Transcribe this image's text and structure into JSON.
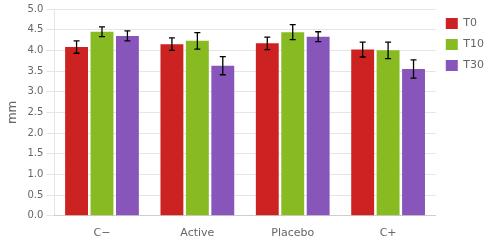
{
  "chart_data": {
    "type": "bar",
    "categories": [
      "C−",
      "Active",
      "Placebo",
      "C+"
    ],
    "series": [
      {
        "name": "T0",
        "color": "#CC2222",
        "values": [
          4.08,
          4.15,
          4.17,
          4.02
        ],
        "errors": [
          0.15,
          0.15,
          0.15,
          0.18
        ]
      },
      {
        "name": "T10",
        "color": "#88BB22",
        "values": [
          4.45,
          4.23,
          4.44,
          4.0
        ],
        "errors": [
          0.12,
          0.2,
          0.18,
          0.2
        ]
      },
      {
        "name": "T30",
        "color": "#8855BB",
        "values": [
          4.35,
          3.63,
          4.33,
          3.55
        ],
        "errors": [
          0.12,
          0.22,
          0.12,
          0.22
        ]
      }
    ],
    "ylabel": "mm",
    "ylim": [
      0.0,
      5.0
    ],
    "yticks": [
      {
        "value": 0,
        "label": "0.0"
      },
      0.5,
      {
        "value": 1,
        "label": "1.0"
      },
      1.5,
      {
        "value": 2,
        "label": "2.0"
      },
      2.5,
      {
        "value": 3,
        "label": "3.0"
      },
      3.5,
      {
        "value": 4,
        "label": "4.0"
      },
      4.5,
      {
        "value": 5,
        "label": "5.0"
      }
    ],
    "grid": true,
    "legend": "right"
  }
}
